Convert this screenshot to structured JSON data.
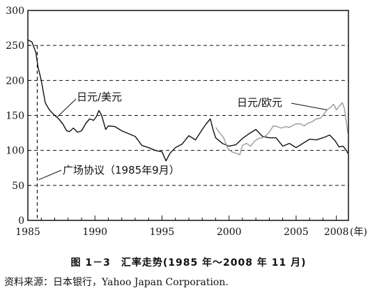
{
  "chart_data": {
    "type": "line",
    "title": "图 1－3　汇率走势(1985 年～2008 年 11 月)",
    "source": "资料来源：日本银行，Yahoo Japan Corporation.",
    "x_unit": "(年)",
    "xlim": [
      1985,
      2008.9
    ],
    "ylim": [
      0,
      300
    ],
    "xticks": [
      1985,
      1990,
      1995,
      2000,
      2005,
      2008
    ],
    "yticks": [
      0,
      50,
      100,
      150,
      200,
      250,
      300
    ],
    "grid": "horizontal-dashed",
    "annotations": [
      {
        "text": "广场协议（1985年9月）",
        "x": 1985.7
      },
      {
        "text": "日元/美元"
      },
      {
        "text": "日元/欧元"
      }
    ],
    "series": [
      {
        "name": "日元/美元",
        "color": "#111111",
        "x": [
          1985.0,
          1985.3,
          1985.6,
          1985.75,
          1986.0,
          1986.3,
          1986.6,
          1987.0,
          1987.3,
          1987.6,
          1987.9,
          1988.1,
          1988.4,
          1988.7,
          1989.0,
          1989.3,
          1989.6,
          1989.9,
          1990.1,
          1990.3,
          1990.5,
          1990.8,
          1991.0,
          1991.5,
          1992.0,
          1992.5,
          1993.0,
          1993.5,
          1994.0,
          1994.5,
          1995.0,
          1995.3,
          1995.6,
          1996.0,
          1996.5,
          1997.0,
          1997.5,
          1998.0,
          1998.3,
          1998.6,
          1998.8,
          1999.0,
          1999.5,
          2000.0,
          2000.5,
          2001.0,
          2001.5,
          2002.0,
          2002.5,
          2003.0,
          2003.5,
          2004.0,
          2004.5,
          2005.0,
          2005.5,
          2006.0,
          2006.5,
          2007.0,
          2007.5,
          2007.9,
          2008.2,
          2008.5,
          2008.75,
          2008.85
        ],
        "values": [
          258,
          255,
          240,
          220,
          200,
          168,
          158,
          150,
          145,
          138,
          128,
          127,
          132,
          126,
          128,
          138,
          145,
          143,
          148,
          157,
          150,
          130,
          135,
          134,
          128,
          124,
          120,
          107,
          104,
          100,
          98,
          85,
          96,
          104,
          109,
          121,
          115,
          130,
          138,
          145,
          130,
          118,
          110,
          106,
          108,
          117,
          124,
          130,
          120,
          118,
          118,
          106,
          110,
          104,
          110,
          116,
          115,
          118,
          122,
          114,
          105,
          106,
          100,
          96
        ]
      },
      {
        "name": "日元/欧元",
        "color": "#9a9a9a",
        "x": [
          1999.0,
          1999.3,
          1999.6,
          1999.9,
          2000.2,
          2000.5,
          2000.8,
          2001.0,
          2001.3,
          2001.6,
          2001.9,
          2002.2,
          2002.5,
          2002.8,
          2003.0,
          2003.3,
          2003.6,
          2003.9,
          2004.2,
          2004.5,
          2004.8,
          2005.0,
          2005.3,
          2005.6,
          2005.9,
          2006.2,
          2006.5,
          2006.8,
          2007.0,
          2007.3,
          2007.6,
          2007.8,
          2008.0,
          2008.2,
          2008.45,
          2008.6,
          2008.75,
          2008.85
        ],
        "values": [
          133,
          125,
          118,
          103,
          98,
          96,
          94,
          107,
          110,
          106,
          113,
          117,
          118,
          122,
          126,
          135,
          134,
          132,
          134,
          133,
          136,
          138,
          138,
          135,
          139,
          141,
          145,
          146,
          150,
          158,
          162,
          166,
          158,
          163,
          168,
          160,
          140,
          125
        ]
      }
    ]
  }
}
